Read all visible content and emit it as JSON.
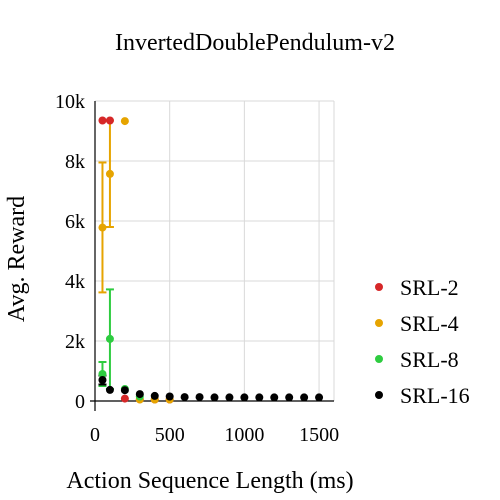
{
  "chart_data": {
    "type": "scatter",
    "title": "InvertedDoublePendulum-v2",
    "xlabel": "Action Sequence Length (ms)",
    "ylabel": "Avg. Reward",
    "xlim": [
      0,
      1600
    ],
    "ylim": [
      0,
      10000
    ],
    "x_ticks": [
      0,
      500,
      1000,
      1500
    ],
    "x_tick_labels": [
      "0",
      "500",
      "1000",
      "1500"
    ],
    "y_ticks": [
      0,
      2000,
      4000,
      6000,
      8000,
      10000
    ],
    "y_tick_labels": [
      "0",
      "2k",
      "4k",
      "6k",
      "8k",
      "10k"
    ],
    "grid": true,
    "legend_position": "right",
    "series": [
      {
        "name": "SRL-2",
        "color": "#d62728",
        "points": [
          {
            "x": 50,
            "y": 9350
          },
          {
            "x": 100,
            "y": 9350
          },
          {
            "x": 200,
            "y": 80
          },
          {
            "x": 300,
            "y": 60
          },
          {
            "x": 400,
            "y": 50
          },
          {
            "x": 500,
            "y": 50
          }
        ]
      },
      {
        "name": "SRL-4",
        "color": "#e6a400",
        "points": [
          {
            "x": 50,
            "y": 5780,
            "err_low": 3620,
            "err_high": 7950
          },
          {
            "x": 100,
            "y": 7570,
            "err_low": 5800,
            "err_high": 9350
          },
          {
            "x": 200,
            "y": 9330
          },
          {
            "x": 300,
            "y": 50
          },
          {
            "x": 400,
            "y": 50
          },
          {
            "x": 500,
            "y": 50
          }
        ]
      },
      {
        "name": "SRL-8",
        "color": "#2ecc40",
        "points": [
          {
            "x": 50,
            "y": 900,
            "err_low": 500,
            "err_high": 1300
          },
          {
            "x": 100,
            "y": 2070,
            "err_low": 400,
            "err_high": 3720
          },
          {
            "x": 200,
            "y": 400
          },
          {
            "x": 300,
            "y": 150
          }
        ]
      },
      {
        "name": "SRL-16",
        "color": "#000000",
        "points": [
          {
            "x": 50,
            "y": 700,
            "err_low": 550,
            "err_high": 850
          },
          {
            "x": 100,
            "y": 370
          },
          {
            "x": 200,
            "y": 360
          },
          {
            "x": 300,
            "y": 230
          },
          {
            "x": 400,
            "y": 170
          },
          {
            "x": 500,
            "y": 150
          },
          {
            "x": 600,
            "y": 130
          },
          {
            "x": 700,
            "y": 130
          },
          {
            "x": 800,
            "y": 120
          },
          {
            "x": 900,
            "y": 120
          },
          {
            "x": 1000,
            "y": 120
          },
          {
            "x": 1100,
            "y": 120
          },
          {
            "x": 1200,
            "y": 120
          },
          {
            "x": 1300,
            "y": 120
          },
          {
            "x": 1400,
            "y": 120
          },
          {
            "x": 1500,
            "y": 120
          }
        ]
      }
    ]
  }
}
